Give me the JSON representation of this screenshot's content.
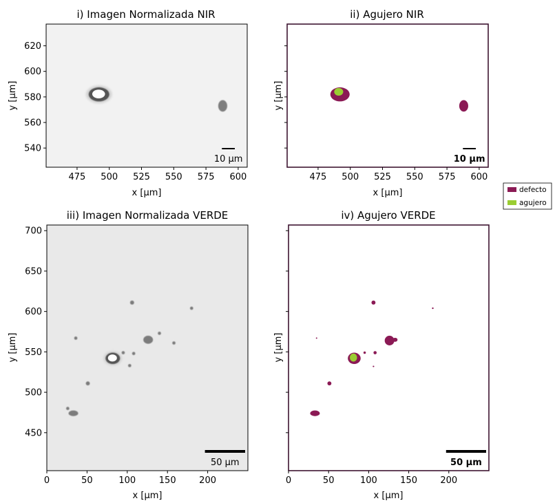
{
  "colors": {
    "defect": "#8b1a55",
    "hole": "#9acd32",
    "frame": "#3d1430",
    "image_bg_nir": "#f2f2f2",
    "image_bg_green": "#e9e9e9"
  },
  "legend": {
    "placement": "right-middle",
    "items": [
      {
        "label": "defecto",
        "color": "#8b1a55"
      },
      {
        "label": "agujero",
        "color": "#9acd32"
      }
    ]
  },
  "chart_data": [
    {
      "id": "p1",
      "type": "heatmap",
      "title": "i) Imagen Normalizada NIR",
      "xlabel": "x [µm]",
      "ylabel": "y [µm]",
      "xlim": [
        451,
        607
      ],
      "ylim": [
        525,
        637
      ],
      "xticks": [
        475,
        500,
        525,
        550,
        575,
        600
      ],
      "yticks": [
        540,
        560,
        580,
        600,
        620
      ],
      "scalebar": {
        "label": "10 µm",
        "length": 10
      },
      "features": [
        {
          "x": 492,
          "y": 582,
          "rx": 8,
          "ry": 5.5,
          "kind": "ring"
        },
        {
          "x": 588,
          "y": 573,
          "rx": 3.5,
          "ry": 4.5,
          "kind": "spot"
        }
      ]
    },
    {
      "id": "p2",
      "type": "heatmap",
      "title": "ii) Agujero NIR",
      "xlabel": "x [µm]",
      "ylabel": "y [µm]",
      "xlim": [
        451,
        607
      ],
      "ylim": [
        525,
        637
      ],
      "xticks": [
        475,
        500,
        525,
        550,
        575,
        600
      ],
      "yticks": [
        540,
        560,
        580,
        600,
        620
      ],
      "scalebar": {
        "label": "10 µm",
        "length": 10
      },
      "defects": [
        {
          "x": 492,
          "y": 582,
          "rx": 7.5,
          "ry": 5.5
        },
        {
          "x": 588,
          "y": 573,
          "rx": 3.5,
          "ry": 4.5
        }
      ],
      "holes": [
        {
          "x": 491,
          "y": 584,
          "rx": 3.5,
          "ry": 3
        }
      ]
    },
    {
      "id": "p3",
      "type": "heatmap",
      "title": "iii) Imagen Normalizada VERDE",
      "xlabel": "x [µm]",
      "ylabel": "y [µm]",
      "xlim": [
        0,
        250
      ],
      "ylim": [
        403,
        707
      ],
      "xticks": [
        0,
        50,
        100,
        150,
        200
      ],
      "yticks": [
        450,
        500,
        550,
        600,
        650,
        700
      ],
      "scalebar": {
        "label": "50 µm",
        "length": 50
      },
      "features": [
        {
          "x": 82,
          "y": 542,
          "rx": 9,
          "ry": 7,
          "kind": "ring"
        },
        {
          "x": 33,
          "y": 474,
          "rx": 6,
          "ry": 3.5,
          "kind": "spot"
        },
        {
          "x": 126,
          "y": 565,
          "rx": 6,
          "ry": 5,
          "kind": "spot"
        },
        {
          "x": 106,
          "y": 611,
          "rx": 2.5,
          "ry": 2.5,
          "kind": "spot"
        },
        {
          "x": 51,
          "y": 511,
          "rx": 2.5,
          "ry": 2.5,
          "kind": "spot"
        },
        {
          "x": 95,
          "y": 549,
          "rx": 2,
          "ry": 2,
          "kind": "spot"
        },
        {
          "x": 108,
          "y": 548,
          "rx": 2,
          "ry": 2,
          "kind": "spot"
        },
        {
          "x": 36,
          "y": 567,
          "rx": 2,
          "ry": 2,
          "kind": "spot"
        },
        {
          "x": 180,
          "y": 604,
          "rx": 2,
          "ry": 2,
          "kind": "spot"
        },
        {
          "x": 103,
          "y": 533,
          "rx": 2,
          "ry": 2,
          "kind": "spot"
        },
        {
          "x": 140,
          "y": 573,
          "rx": 2,
          "ry": 2,
          "kind": "spot"
        },
        {
          "x": 158,
          "y": 561,
          "rx": 2,
          "ry": 2,
          "kind": "spot"
        },
        {
          "x": 26,
          "y": 480,
          "rx": 2,
          "ry": 2,
          "kind": "spot"
        }
      ]
    },
    {
      "id": "p4",
      "type": "heatmap",
      "title": "iv) Agujero VERDE",
      "xlabel": "x [µm]",
      "ylabel": "y [µm]",
      "xlim": [
        0,
        250
      ],
      "ylim": [
        403,
        707
      ],
      "xticks": [
        0,
        50,
        100,
        150,
        200
      ],
      "yticks": [
        450,
        500,
        550,
        600,
        650,
        700
      ],
      "scalebar": {
        "label": "50 µm",
        "length": 50
      },
      "defects": [
        {
          "x": 82,
          "y": 542,
          "rx": 8,
          "ry": 7
        },
        {
          "x": 33,
          "y": 474,
          "rx": 6,
          "ry": 3.5
        },
        {
          "x": 126,
          "y": 564,
          "rx": 6,
          "ry": 6
        },
        {
          "x": 133,
          "y": 565,
          "rx": 3,
          "ry": 2.5
        },
        {
          "x": 106,
          "y": 611,
          "rx": 2.5,
          "ry": 2.5
        },
        {
          "x": 51,
          "y": 511,
          "rx": 2.5,
          "ry": 2.5
        },
        {
          "x": 95,
          "y": 549,
          "rx": 1.5,
          "ry": 1.5
        },
        {
          "x": 108,
          "y": 549,
          "rx": 2,
          "ry": 2
        },
        {
          "x": 180,
          "y": 604,
          "rx": 1,
          "ry": 1
        },
        {
          "x": 106,
          "y": 532,
          "rx": 1,
          "ry": 0.7
        },
        {
          "x": 35,
          "y": 567,
          "rx": 0.8,
          "ry": 0.8
        }
      ],
      "holes": [
        {
          "x": 81,
          "y": 543,
          "rx": 4.5,
          "ry": 5
        }
      ]
    }
  ]
}
